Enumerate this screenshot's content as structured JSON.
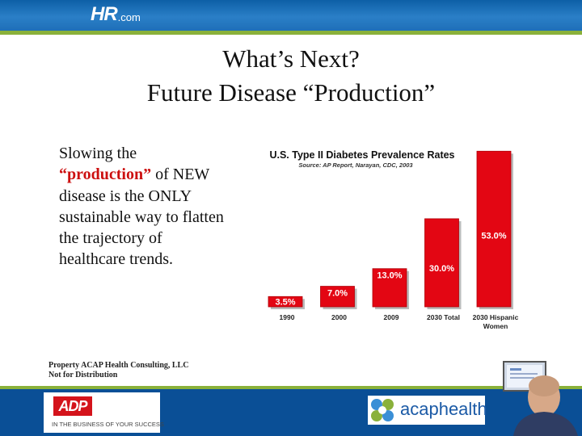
{
  "header": {
    "logo_main": "HR",
    "logo_domain": ".com"
  },
  "title": {
    "line1": "What’s Next?",
    "line2": "Future Disease “Production”"
  },
  "body": {
    "part1": "Slowing the",
    "red": "“production”",
    "part2": " of NEW disease is the ONLY sustainable way to flatten the trajectory of healthcare trends."
  },
  "footer_note": {
    "line1": "Property ACAP Health Consulting, LLC",
    "line2": "Not for Distribution"
  },
  "logos": {
    "adp_text": "ADP",
    "adp_tagline": "IN THE BUSINESS OF YOUR SUCCESS",
    "acap_text": "acaphealth"
  },
  "colors": {
    "bar": "#e30613",
    "bar_dark": "#b00008",
    "header": "#1f6fb8",
    "accent_green": "#8ab13a"
  },
  "chart_data": {
    "type": "bar",
    "title": "U.S. Type II Diabetes Prevalence Rates",
    "subtitle": "Source: AP Report, Narayan, CDC, 2003",
    "categories": [
      "1990",
      "2000",
      "2009",
      "2030 Total",
      "2030 Hispanic Women"
    ],
    "values": [
      3.5,
      7.0,
      13.0,
      30.0,
      53.0
    ],
    "value_labels": [
      "3.5%",
      "7.0%",
      "13.0%",
      "30.0%",
      "53.0%"
    ],
    "ylim": [
      0,
      55
    ],
    "grid": false,
    "legend": "none"
  }
}
